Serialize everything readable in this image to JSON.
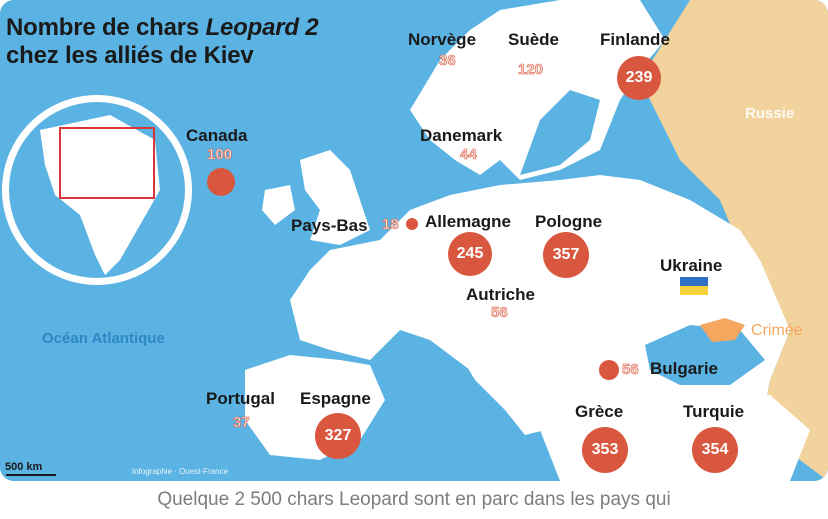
{
  "title": {
    "line1_plain": "Nombre de chars ",
    "line1_italic": "Leopard 2",
    "line2": "chez les alliés de Kiev"
  },
  "map_labels": {
    "ocean": "Océan Atlantique",
    "russia": "Russie",
    "crimea": "Crimée",
    "ukraine": "Ukraine"
  },
  "countries": [
    {
      "name": "Norvège",
      "tanks": "36"
    },
    {
      "name": "Suède",
      "tanks": "120"
    },
    {
      "name": "Finlande",
      "tanks": "239"
    },
    {
      "name": "Canada",
      "tanks": "100"
    },
    {
      "name": "Danemark",
      "tanks": "44"
    },
    {
      "name": "Pays-Bas",
      "tanks": "18"
    },
    {
      "name": "Allemagne",
      "tanks": "245"
    },
    {
      "name": "Pologne",
      "tanks": "357"
    },
    {
      "name": "Autriche",
      "tanks": "56"
    },
    {
      "name": "Bulgarie",
      "tanks": "56"
    },
    {
      "name": "Portugal",
      "tanks": "37"
    },
    {
      "name": "Espagne",
      "tanks": "327"
    },
    {
      "name": "Grèce",
      "tanks": "353"
    },
    {
      "name": "Turquie",
      "tanks": "354"
    }
  ],
  "scale": "500 km",
  "credits": "Infographie · Ouest-France",
  "caption": "Quelque 2 500 chars Leopard sont en parc dans les pays qui",
  "colors": {
    "sea": "#5ab3e3",
    "land": "#ffffff",
    "russia": "#f3d39d",
    "bubble": "#d9573f",
    "crimea": "#f6a75f"
  }
}
